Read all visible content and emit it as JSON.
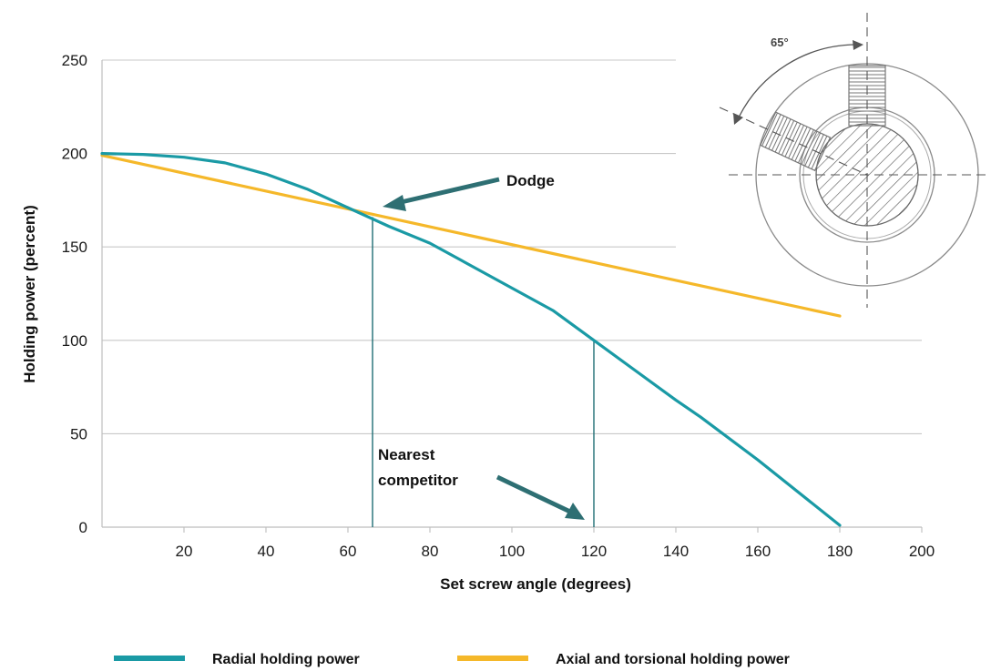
{
  "chart_data": {
    "type": "line",
    "xlabel": "Set screw angle (degrees)",
    "ylabel": "Holding power (percent)",
    "xlim": [
      0,
      200
    ],
    "ylim": [
      0,
      250
    ],
    "x_ticks": [
      "20",
      "40",
      "60",
      "80",
      "100",
      "120",
      "140",
      "160",
      "180",
      "200"
    ],
    "y_ticks": [
      "0",
      "50",
      "100",
      "150",
      "200",
      "250"
    ],
    "grid": "horizontal",
    "legend_placement": "bottom",
    "series": [
      {
        "name": "Radial holding power",
        "color": "#1a9aa5",
        "x": [
          0,
          10,
          20,
          30,
          40,
          50,
          60,
          66,
          70,
          80,
          90,
          100,
          110,
          120,
          130,
          140,
          146,
          160,
          180
        ],
        "y": [
          200,
          199.5,
          198,
          195,
          189,
          181,
          171,
          165,
          161,
          152,
          140,
          128,
          116,
          100,
          84,
          68,
          59,
          36,
          1
        ]
      },
      {
        "name": "Axial and torsional holding power",
        "color": "#f5b82a",
        "x": [
          0,
          180
        ],
        "y": [
          199,
          113
        ]
      }
    ],
    "annotations": [
      {
        "text": "Dodge",
        "x": 66,
        "y": 166
      },
      {
        "text_lines": [
          "Nearest",
          "competitor"
        ],
        "x": 120,
        "y": 100
      }
    ],
    "inset_diagram": {
      "angle_label": "65°"
    }
  }
}
